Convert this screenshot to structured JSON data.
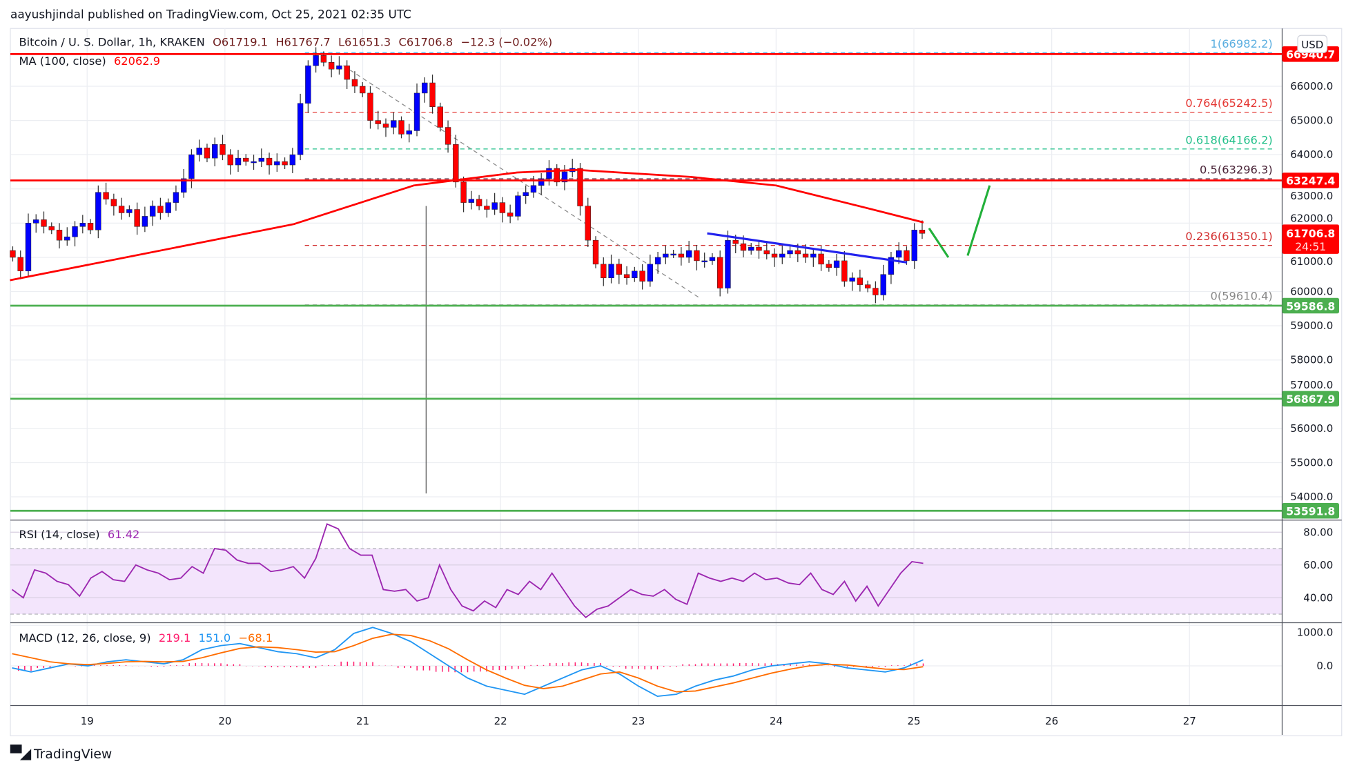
{
  "header": {
    "published": "aayushjindal published on TradingView.com, Oct 25, 2021 02:35 UTC"
  },
  "footer": {
    "brand": "TradingView",
    "logo_text": "TV"
  },
  "chart_data": [
    {
      "type": "candlestick",
      "title": "Bitcoin / U. S. Dollar, 1h, KRAKEN",
      "ohlc_label": {
        "open": "O61719.1",
        "high": "H61767.7",
        "low": "L61651.3",
        "close": "C61706.8",
        "change": "−12.3 (−0.02%)"
      },
      "currency": "USD",
      "ylim": [
        53300,
        67200
      ],
      "y_ticks": [
        "66000.0",
        "65000.0",
        "64000.0",
        "63000.0",
        "62000.0",
        "61000.0",
        "60000.0",
        "59000.0",
        "58000.0",
        "57000.0",
        "56000.0",
        "55000.0",
        "54000.0"
      ],
      "x_ticks": [
        "19",
        "20",
        "21",
        "22",
        "23",
        "24",
        "25",
        "26",
        "27"
      ],
      "x_range_days": [
        18.44,
        27.7
      ],
      "closes_start_day": 18.46,
      "closes_end_day": 25.06,
      "closes": [
        61000,
        60600,
        62000,
        62100,
        61900,
        61800,
        61500,
        61600,
        61900,
        62000,
        61800,
        62900,
        62700,
        62500,
        62300,
        62400,
        61900,
        62200,
        62500,
        62300,
        62600,
        62900,
        63300,
        64000,
        64200,
        63900,
        64300,
        64000,
        63700,
        63900,
        63800,
        63800,
        63900,
        63700,
        63800,
        63700,
        64000,
        65500,
        66600,
        66900,
        66700,
        66500,
        66600,
        66200,
        66000,
        65800,
        65000,
        64900,
        64800,
        65000,
        64600,
        64700,
        65800,
        66100,
        65400,
        64800,
        64300,
        63200,
        62600,
        62700,
        62500,
        62400,
        62600,
        62300,
        62200,
        62800,
        62900,
        63100,
        63300,
        63600,
        63200,
        63500,
        63600,
        62500,
        61500,
        60800,
        60400,
        60800,
        60500,
        60400,
        60600,
        60300,
        60800,
        61000,
        61100,
        61100,
        61000,
        61200,
        60900,
        60900,
        61000,
        60100,
        61500,
        61400,
        61200,
        61300,
        61200,
        61100,
        61000,
        61100,
        61200,
        61100,
        61000,
        61100,
        60800,
        60700,
        60900,
        60300,
        60400,
        60200,
        60100,
        59900,
        60500,
        61000,
        61200,
        60900,
        61800,
        61700
      ],
      "big_wick": {
        "day": 21.46,
        "low": 54100
      },
      "ma": {
        "label": "MA (100, close)",
        "value": "62062.9",
        "color": "#ff0000",
        "points": [
          [
            18.44,
            60330
          ],
          [
            20.5,
            61970
          ],
          [
            21.37,
            63100
          ],
          [
            22.12,
            63480
          ],
          [
            22.56,
            63555
          ],
          [
            23.38,
            63350
          ],
          [
            24.0,
            63100
          ],
          [
            24.63,
            62470
          ],
          [
            25.07,
            62020
          ]
        ]
      },
      "levels": [
        {
          "price": 66940.7,
          "label": "66940.7",
          "color": "#ff0000"
        },
        {
          "price": 63247.4,
          "label": "63247.4",
          "color": "#ff0000"
        },
        {
          "price": 59586.8,
          "label": "59586.8",
          "color": "#4caf50"
        },
        {
          "price": 56867.9,
          "label": "56867.9",
          "color": "#4caf50"
        },
        {
          "price": 53591.8,
          "label": "53591.8",
          "color": "#4caf50"
        }
      ],
      "last_price": {
        "price": 61706.8,
        "label": "61706.8",
        "countdown": "24:51",
        "color": "#ff0000"
      },
      "fib": [
        {
          "price": 66982.2,
          "label": "1(66982.2)",
          "color": "#5aaee0"
        },
        {
          "price": 65242.5,
          "label": "0.764(65242.5)",
          "color": "#e53935"
        },
        {
          "price": 64166.2,
          "label": "0.618(64166.2)",
          "color": "#22c08a"
        },
        {
          "price": 63296.3,
          "label": "0.5(63296.3)",
          "color": "#4a2438"
        },
        {
          "price": 61350.1,
          "label": "0.236(61350.1)",
          "color": "#d32f2f"
        },
        {
          "price": 59610.4,
          "label": "0(59610.4)",
          "color": "#888888"
        }
      ],
      "fib_start_day": 20.58,
      "trendline_diag": [
        [
          20.86,
          66600
        ],
        [
          23.45,
          59800
        ]
      ],
      "trendline_blue": [
        [
          23.5,
          61700
        ],
        [
          24.95,
          60850
        ]
      ],
      "projection_green": [
        [
          25.11,
          61850
        ],
        [
          25.25,
          61000
        ],
        [
          25.39,
          61050
        ],
        [
          25.55,
          63100
        ]
      ]
    },
    {
      "type": "line",
      "title": "RSI (14, close)",
      "value": "61.42",
      "color": "#9c27b0",
      "ylim": [
        20,
        86
      ],
      "y_ticks": [
        "80.00",
        "60.00",
        "40.00"
      ],
      "band": [
        30,
        70
      ],
      "values": [
        45,
        40,
        57,
        55,
        50,
        48,
        41,
        52,
        56,
        51,
        50,
        60,
        57,
        55,
        51,
        52,
        59,
        55,
        70,
        69,
        63,
        61,
        61,
        56,
        57,
        59,
        52,
        64,
        85,
        82,
        70,
        66,
        66,
        45,
        44,
        45,
        38,
        40,
        60,
        45,
        35,
        32,
        38,
        34,
        45,
        42,
        50,
        45,
        55,
        45,
        35,
        28,
        33,
        35,
        40,
        45,
        42,
        41,
        45,
        39,
        36,
        55,
        52,
        50,
        52,
        50,
        55,
        51,
        52,
        49,
        48,
        55,
        45,
        42,
        50,
        38,
        47,
        35,
        45,
        55,
        62,
        61
      ]
    },
    {
      "type": "line",
      "title": "MACD (12, 26, close, 9)",
      "values_label": {
        "histogram": "219.1",
        "macd": "151.0",
        "signal": "−68.1"
      },
      "colors": {
        "histogram": "#ff1e6e",
        "macd": "#2196f3",
        "signal": "#ff6d00"
      },
      "y_ticks": [
        "1000.0",
        "0.0"
      ],
      "ylim": [
        -1000,
        1050
      ],
      "macd": [
        -50,
        -150,
        -50,
        50,
        0,
        100,
        150,
        100,
        50,
        150,
        400,
        500,
        550,
        450,
        350,
        300,
        200,
        400,
        800,
        950,
        800,
        600,
        300,
        0,
        -300,
        -500,
        -600,
        -700,
        -500,
        -300,
        -100,
        0,
        -200,
        -500,
        -750,
        -700,
        -500,
        -350,
        -250,
        -100,
        0,
        50,
        100,
        50,
        -50,
        -100,
        -150,
        -50,
        150
      ],
      "signal": [
        300,
        200,
        100,
        50,
        30,
        60,
        100,
        110,
        100,
        110,
        200,
        320,
        430,
        470,
        450,
        400,
        340,
        350,
        500,
        680,
        780,
        750,
        620,
        420,
        150,
        -100,
        -300,
        -480,
        -560,
        -500,
        -350,
        -200,
        -150,
        -300,
        -500,
        -640,
        -620,
        -520,
        -420,
        -300,
        -180,
        -80,
        0,
        40,
        20,
        -30,
        -80,
        -90,
        -20
      ]
    }
  ]
}
